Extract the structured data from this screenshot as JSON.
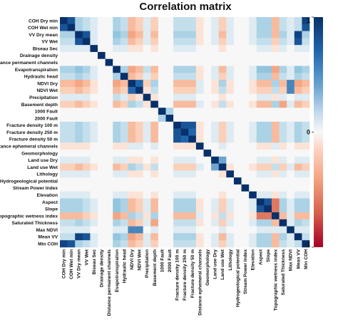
{
  "chart_data": {
    "type": "heatmap",
    "title": "Correlation matrix",
    "variables": [
      "COH Dry min",
      "COH Wet min",
      "VV Dry mean",
      "VV Wet",
      "Biseau Sec",
      "Drainage density",
      "Distance permanent channels",
      "Evapotranspiration",
      "Hydraulic head",
      "NDVI Dry",
      "NDVI Wet",
      "Precipitation",
      "Basement depth",
      "1000 Fault",
      "2000 Fault",
      "Fracture density 100 m",
      "Fracture density 250 m",
      "Fracture density 50 m",
      "Distance ephemeral channels",
      "Geomorphology",
      "Land use Dry",
      "Land use Wet",
      "Lithology",
      "Hydrogeological potential",
      "Stream Power Index",
      "Elevation",
      "Aspect",
      "Slope",
      "Topographic wetness index",
      "Saturated Thickness",
      "Max NDVI",
      "Mean VV",
      "Min COH"
    ],
    "colorbar": {
      "min": -1,
      "max": 1,
      "ticks": [
        "1",
        "0",
        "-1"
      ]
    },
    "colors": {
      "positive": "#08306b",
      "negative": "#a50026",
      "zero": "#f7f7f7"
    },
    "correlations": [
      [
        1,
        0.8,
        0.3,
        0.2,
        0.1,
        0,
        0,
        0.3,
        0.2,
        -0.3,
        -0.2,
        0.1,
        -0.2,
        0,
        0,
        0.2,
        0.2,
        0.2,
        -0.1,
        0,
        0.1,
        -0.2,
        0.1,
        0,
        0,
        0.1,
        0.3,
        0.3,
        -0.3,
        0.2,
        0.1,
        0.2,
        0.9
      ],
      [
        0.8,
        1,
        0.3,
        0.2,
        0.1,
        0,
        0,
        0.3,
        0.2,
        -0.3,
        -0.2,
        0.1,
        -0.2,
        0,
        0,
        0.2,
        0.2,
        0.2,
        -0.1,
        0,
        0.1,
        -0.2,
        0.1,
        0,
        0,
        0.1,
        0.3,
        0.3,
        -0.3,
        0.2,
        0.1,
        0.2,
        0.8
      ],
      [
        0.3,
        0.3,
        1,
        0.8,
        0.1,
        0,
        0,
        0.4,
        0.3,
        -0.4,
        -0.3,
        0.1,
        -0.3,
        0,
        0,
        0.3,
        0.3,
        0.3,
        -0.1,
        0,
        0.1,
        -0.3,
        0.1,
        0,
        0,
        0.1,
        0.3,
        0.3,
        -0.3,
        0.3,
        0.1,
        0.9,
        0.3
      ],
      [
        0.2,
        0.2,
        0.8,
        1,
        0.1,
        0,
        0,
        0.3,
        0.2,
        -0.3,
        -0.2,
        0.1,
        -0.2,
        0,
        0,
        0.2,
        0.2,
        0.2,
        -0.1,
        0,
        0.1,
        -0.2,
        0.1,
        0,
        0,
        0.1,
        0.2,
        0.2,
        -0.2,
        0.2,
        0.1,
        0.8,
        0.2
      ],
      [
        0.1,
        0.1,
        0.1,
        0.1,
        1,
        0,
        0,
        0.1,
        0.1,
        -0.1,
        -0.1,
        0,
        -0.1,
        0,
        0,
        0.1,
        0.1,
        0.1,
        0,
        0,
        0,
        -0.1,
        0,
        0,
        0,
        0,
        0.1,
        0.1,
        -0.1,
        0.1,
        0,
        0.1,
        0.1
      ],
      [
        0,
        0,
        0,
        0,
        0,
        1,
        0,
        0,
        0,
        0,
        0,
        0,
        0,
        0,
        0,
        0,
        0,
        0,
        0,
        0,
        0,
        0,
        0,
        0,
        0,
        0,
        0,
        0,
        0,
        0,
        0,
        0,
        0
      ],
      [
        0,
        0,
        0,
        0,
        0,
        0,
        1,
        0,
        0,
        0,
        0,
        0,
        0,
        0,
        0,
        0,
        0,
        0,
        0,
        0,
        0,
        0,
        0,
        0,
        0,
        0,
        0,
        0,
        0,
        0,
        0,
        0,
        0
      ],
      [
        0.3,
        0.3,
        0.4,
        0.3,
        0.1,
        0,
        0,
        1,
        0.3,
        -0.4,
        -0.3,
        0.2,
        -0.3,
        0,
        0,
        0.3,
        0.3,
        0.3,
        -0.1,
        0,
        0.1,
        -0.3,
        0.1,
        0,
        0,
        0.1,
        0.4,
        0.4,
        -0.4,
        0.3,
        0.1,
        0.4,
        0.3
      ],
      [
        0.2,
        0.2,
        0.3,
        0.2,
        0.1,
        0,
        0,
        0.3,
        1,
        -0.3,
        -0.2,
        0.1,
        -0.2,
        0,
        0,
        0.2,
        0.2,
        0.2,
        -0.1,
        0,
        0.1,
        -0.2,
        0.1,
        0,
        0,
        0.1,
        0.3,
        0.3,
        -0.3,
        0.2,
        0.1,
        0.3,
        0.2
      ],
      [
        -0.3,
        -0.3,
        -0.4,
        -0.3,
        -0.1,
        0,
        0,
        -0.4,
        -0.3,
        1,
        0.7,
        -0.2,
        0.3,
        0,
        0,
        -0.3,
        -0.3,
        -0.3,
        0.1,
        0,
        -0.1,
        0.3,
        -0.1,
        0,
        0,
        -0.1,
        -0.3,
        -0.3,
        0.3,
        -0.3,
        0.6,
        -0.4,
        -0.3
      ],
      [
        -0.2,
        -0.2,
        -0.3,
        -0.2,
        -0.1,
        0,
        0,
        -0.3,
        -0.2,
        0.7,
        1,
        -0.1,
        0.2,
        0,
        0,
        -0.2,
        -0.2,
        -0.2,
        0.1,
        0,
        -0.1,
        0.2,
        -0.1,
        0,
        0,
        -0.1,
        -0.2,
        -0.2,
        0.2,
        -0.2,
        0.6,
        -0.3,
        -0.2
      ],
      [
        0.1,
        0.1,
        0.1,
        0.1,
        0,
        0,
        0,
        0.2,
        0.1,
        -0.2,
        -0.1,
        1,
        -0.1,
        0,
        0,
        0.1,
        0.1,
        0.1,
        0,
        0,
        0,
        -0.1,
        0,
        0,
        0,
        0,
        0.1,
        0.1,
        -0.1,
        0.1,
        0,
        0.1,
        0.1
      ],
      [
        -0.2,
        -0.2,
        -0.3,
        -0.2,
        -0.1,
        0,
        0,
        -0.3,
        -0.2,
        0.3,
        0.2,
        -0.1,
        1,
        0,
        0,
        -0.3,
        -0.3,
        -0.3,
        0.1,
        0,
        -0.1,
        0.2,
        -0.1,
        0,
        0,
        -0.1,
        -0.3,
        -0.3,
        0.3,
        -0.4,
        0.1,
        -0.3,
        -0.2
      ],
      [
        0,
        0,
        0,
        0,
        0,
        0,
        0,
        0,
        0,
        0,
        0,
        0,
        0,
        1,
        0.3,
        0,
        0,
        0,
        0,
        0,
        0,
        0,
        0,
        0,
        0,
        0,
        0,
        0,
        0,
        0,
        0,
        0,
        0
      ],
      [
        0,
        0,
        0,
        0,
        0,
        0,
        0,
        0,
        0,
        0,
        0,
        0,
        0,
        0.3,
        1,
        0,
        0,
        0,
        0,
        0,
        0,
        0,
        0,
        0,
        0,
        0,
        0,
        0,
        0,
        0,
        0,
        0,
        0
      ],
      [
        0.2,
        0.2,
        0.3,
        0.2,
        0.1,
        0,
        0,
        0.3,
        0.2,
        -0.3,
        -0.2,
        0.1,
        -0.3,
        0,
        0,
        1,
        0.8,
        0.8,
        -0.1,
        0,
        0.1,
        -0.2,
        0.1,
        0,
        0,
        0.1,
        0.3,
        0.3,
        -0.3,
        0.2,
        0.1,
        0.3,
        0.2
      ],
      [
        0.2,
        0.2,
        0.3,
        0.2,
        0.1,
        0,
        0,
        0.3,
        0.2,
        -0.3,
        -0.2,
        0.1,
        -0.3,
        0,
        0,
        0.8,
        1,
        0.7,
        -0.1,
        0,
        0.1,
        -0.2,
        0.1,
        0,
        0,
        0.1,
        0.3,
        0.3,
        -0.3,
        0.2,
        0.1,
        0.3,
        0.2
      ],
      [
        0.2,
        0.2,
        0.3,
        0.2,
        0.1,
        0,
        0,
        0.3,
        0.2,
        -0.3,
        -0.2,
        0.1,
        -0.3,
        0,
        0,
        0.8,
        0.7,
        1,
        -0.1,
        0,
        0.1,
        -0.2,
        0.1,
        0,
        0,
        0.1,
        0.3,
        0.3,
        -0.3,
        0.2,
        0.1,
        0.3,
        0.2
      ],
      [
        -0.1,
        -0.1,
        -0.1,
        -0.1,
        0,
        0,
        0,
        -0.1,
        -0.1,
        0.1,
        0.1,
        0,
        0.1,
        0,
        0,
        -0.1,
        -0.1,
        -0.1,
        1,
        0,
        0,
        0.1,
        0,
        0,
        0,
        0,
        -0.1,
        -0.1,
        0.1,
        -0.1,
        0,
        -0.1,
        -0.1
      ],
      [
        0,
        0,
        0,
        0,
        0,
        0,
        0,
        0,
        0,
        0,
        0,
        0,
        0,
        0,
        0,
        0,
        0,
        0,
        0,
        1,
        0,
        0,
        0,
        0,
        0,
        0,
        0,
        0,
        0,
        0,
        0,
        0,
        0
      ],
      [
        0.1,
        0.1,
        0.1,
        0.1,
        0,
        0,
        0,
        0.1,
        0.1,
        -0.1,
        -0.1,
        0,
        -0.1,
        0,
        0,
        0.1,
        0.1,
        0.1,
        0,
        0,
        1,
        0.5,
        0,
        0,
        0,
        0,
        0.1,
        0.1,
        -0.1,
        0.1,
        0,
        0.1,
        0.1
      ],
      [
        -0.2,
        -0.2,
        -0.3,
        -0.2,
        -0.1,
        0,
        0,
        -0.3,
        -0.2,
        0.3,
        0.2,
        -0.1,
        0.2,
        0,
        0,
        -0.2,
        -0.2,
        -0.2,
        0.1,
        0,
        0.5,
        1,
        -0.1,
        0,
        0,
        -0.1,
        -0.2,
        -0.2,
        0.2,
        -0.2,
        0.1,
        -0.3,
        -0.2
      ],
      [
        0.1,
        0.1,
        0.1,
        0.1,
        0,
        0,
        0,
        0.1,
        0.1,
        -0.1,
        -0.1,
        0,
        -0.1,
        0,
        0,
        0.1,
        0.1,
        0.1,
        0,
        0,
        0,
        -0.1,
        1,
        0,
        0,
        0,
        0.1,
        0.1,
        -0.1,
        0.1,
        0,
        0.1,
        0.1
      ],
      [
        0,
        0,
        0,
        0,
        0,
        0,
        0,
        0,
        0,
        0,
        0,
        0,
        0,
        0,
        0,
        0,
        0,
        0,
        0,
        0,
        0,
        0,
        0,
        1,
        0,
        0,
        0,
        0,
        0,
        0,
        0,
        0,
        0
      ],
      [
        0,
        0,
        0,
        0,
        0,
        0,
        0,
        0,
        0,
        0,
        0,
        0,
        0,
        0,
        0,
        0,
        0,
        0,
        0,
        0,
        0,
        0,
        0,
        0,
        1,
        0,
        0,
        0,
        0,
        0,
        0,
        0,
        0
      ],
      [
        0.1,
        0.1,
        0.1,
        0.1,
        0,
        0,
        0,
        0.1,
        0.1,
        -0.1,
        -0.1,
        0,
        -0.1,
        0,
        0,
        0.1,
        0.1,
        0.1,
        0,
        0,
        0,
        -0.1,
        0,
        0,
        0,
        1,
        0.1,
        0.1,
        -0.1,
        0.1,
        0,
        0.1,
        0.1
      ],
      [
        0.3,
        0.3,
        0.3,
        0.2,
        0.1,
        0,
        0,
        0.4,
        0.3,
        -0.3,
        -0.2,
        0.1,
        -0.3,
        0,
        0,
        0.3,
        0.3,
        0.3,
        -0.1,
        0,
        0.1,
        -0.2,
        0.1,
        0,
        0,
        0.1,
        1,
        0.8,
        -0.6,
        0.3,
        0.1,
        0.3,
        0.3
      ],
      [
        0.3,
        0.3,
        0.3,
        0.2,
        0.1,
        0,
        0,
        0.4,
        0.3,
        -0.3,
        -0.2,
        0.1,
        -0.3,
        0,
        0,
        0.3,
        0.3,
        0.3,
        -0.1,
        0,
        0.1,
        -0.2,
        0.1,
        0,
        0,
        0.1,
        0.8,
        1,
        -0.6,
        0.3,
        0.1,
        0.3,
        0.3
      ],
      [
        -0.3,
        -0.3,
        -0.3,
        -0.2,
        -0.1,
        0,
        0,
        -0.4,
        -0.3,
        0.3,
        0.2,
        -0.1,
        0.3,
        0,
        0,
        -0.3,
        -0.3,
        -0.3,
        0.1,
        0,
        -0.1,
        0.2,
        -0.1,
        0,
        0,
        -0.1,
        -0.6,
        -0.6,
        1,
        -0.3,
        0.1,
        -0.3,
        -0.3
      ],
      [
        0.2,
        0.2,
        0.3,
        0.2,
        0.1,
        0,
        0,
        0.3,
        0.2,
        -0.3,
        -0.2,
        0.1,
        -0.4,
        0,
        0,
        0.2,
        0.2,
        0.2,
        -0.1,
        0,
        0.1,
        -0.2,
        0.1,
        0,
        0,
        0.1,
        0.3,
        0.3,
        -0.3,
        1,
        0.1,
        0.3,
        0.2
      ],
      [
        0.1,
        0.1,
        0.1,
        0.1,
        0,
        0,
        0,
        0.1,
        0.1,
        0.6,
        0.6,
        0,
        0.1,
        0,
        0,
        0.1,
        0.1,
        0.1,
        0,
        0,
        0,
        0.1,
        0,
        0,
        0,
        0,
        0.1,
        0.1,
        0.1,
        0.1,
        1,
        0.1,
        0.1
      ],
      [
        0.2,
        0.2,
        0.9,
        0.8,
        0.1,
        0,
        0,
        0.4,
        0.3,
        -0.4,
        -0.3,
        0.1,
        -0.3,
        0,
        0,
        0.3,
        0.3,
        0.3,
        -0.1,
        0,
        0.1,
        -0.3,
        0.1,
        0,
        0,
        0.1,
        0.3,
        0.3,
        -0.3,
        0.3,
        0.1,
        1,
        0.2
      ],
      [
        0.9,
        0.8,
        0.3,
        0.2,
        0.1,
        0,
        0,
        0.3,
        0.2,
        -0.3,
        -0.2,
        0.1,
        -0.2,
        0,
        0,
        0.2,
        0.2,
        0.2,
        -0.1,
        0,
        0.1,
        -0.2,
        0.1,
        0,
        0,
        0.1,
        0.3,
        0.3,
        -0.3,
        0.2,
        0.1,
        0.2,
        1
      ]
    ]
  }
}
